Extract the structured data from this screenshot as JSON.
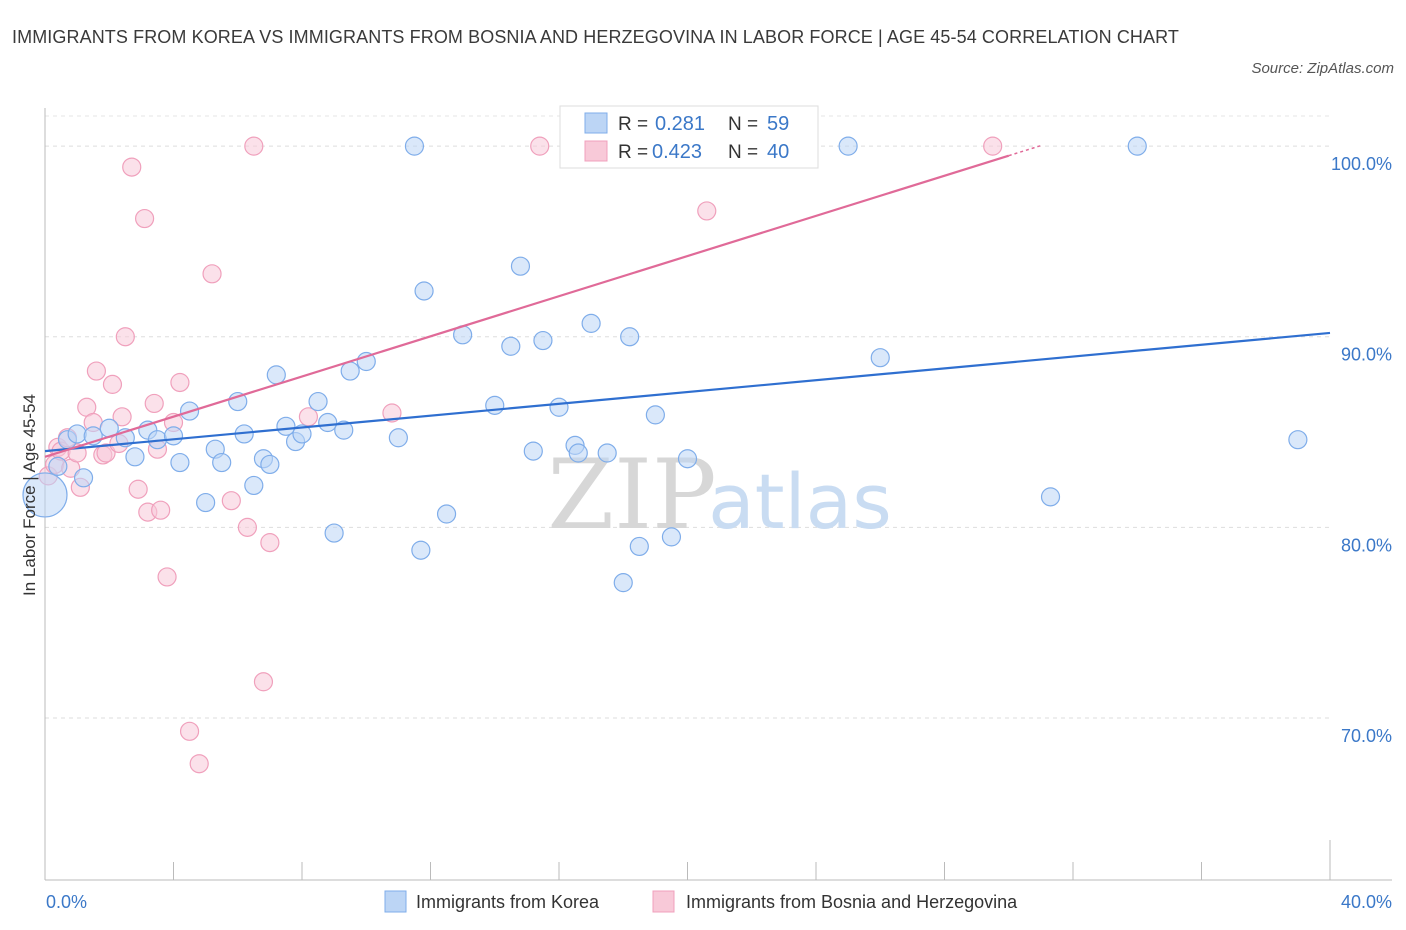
{
  "title": "IMMIGRANTS FROM KOREA VS IMMIGRANTS FROM BOSNIA AND HERZEGOVINA IN LABOR FORCE | AGE 45-54 CORRELATION CHART",
  "source": "Source: ZipAtlas.com",
  "watermark": {
    "zip": "ZIP",
    "atlas": "atlas"
  },
  "chart_data": {
    "type": "scatter",
    "ylabel": "In Labor Force | Age 45-54",
    "xlim": [
      0,
      40
    ],
    "ylim": [
      61.5,
      102
    ],
    "x_tick_labels": [
      "0.0%",
      "40.0%"
    ],
    "y_ticks": [
      70,
      80,
      90,
      100
    ],
    "y_tick_labels": [
      "70.0%",
      "80.0%",
      "90.0%",
      "100.0%"
    ],
    "grid": true,
    "legend_position": "top-center",
    "series": [
      {
        "name": "Immigrants from Korea",
        "color": "#7fadea",
        "fill": "#bcd5f5",
        "line_color": "#2f6fd0",
        "R": "0.281",
        "N": "59",
        "trend": {
          "x": [
            0,
            40
          ],
          "y": [
            84.0,
            90.2
          ]
        },
        "points": [
          [
            0.0,
            81.7
          ],
          [
            0.4,
            83.2
          ],
          [
            0.7,
            84.6
          ],
          [
            1.0,
            84.9
          ],
          [
            1.2,
            82.6
          ],
          [
            1.5,
            84.8
          ],
          [
            2.0,
            85.2
          ],
          [
            2.5,
            84.7
          ],
          [
            2.8,
            83.7
          ],
          [
            3.2,
            85.1
          ],
          [
            3.5,
            84.6
          ],
          [
            4.0,
            84.8
          ],
          [
            4.2,
            83.4
          ],
          [
            4.5,
            86.1
          ],
          [
            5.0,
            81.3
          ],
          [
            5.3,
            84.1
          ],
          [
            5.5,
            83.4
          ],
          [
            6.0,
            86.6
          ],
          [
            6.2,
            84.9
          ],
          [
            6.5,
            82.2
          ],
          [
            6.8,
            83.6
          ],
          [
            7.0,
            83.3
          ],
          [
            7.2,
            88.0
          ],
          [
            7.5,
            85.3
          ],
          [
            7.8,
            84.5
          ],
          [
            8.0,
            84.9
          ],
          [
            8.5,
            86.6
          ],
          [
            8.8,
            85.5
          ],
          [
            9.0,
            79.7
          ],
          [
            9.3,
            85.1
          ],
          [
            9.5,
            88.2
          ],
          [
            10.0,
            88.7
          ],
          [
            11.0,
            84.7
          ],
          [
            11.5,
            100.0
          ],
          [
            11.7,
            78.8
          ],
          [
            11.8,
            92.4
          ],
          [
            12.5,
            80.7
          ],
          [
            13.0,
            90.1
          ],
          [
            14.0,
            86.4
          ],
          [
            14.5,
            89.5
          ],
          [
            14.8,
            93.7
          ],
          [
            15.2,
            84.0
          ],
          [
            15.5,
            89.8
          ],
          [
            16.0,
            86.3
          ],
          [
            16.5,
            84.3
          ],
          [
            16.6,
            83.9
          ],
          [
            17.0,
            90.7
          ],
          [
            17.5,
            83.9
          ],
          [
            18.0,
            77.1
          ],
          [
            18.2,
            90.0
          ],
          [
            18.5,
            79.0
          ],
          [
            19.0,
            85.9
          ],
          [
            19.5,
            79.5
          ],
          [
            20.0,
            83.6
          ],
          [
            25.0,
            100.0
          ],
          [
            26.0,
            88.9
          ],
          [
            31.3,
            81.6
          ],
          [
            34.0,
            100.0
          ],
          [
            39.0,
            84.6
          ]
        ]
      },
      {
        "name": "Immigrants from Bosnia and Herzegovina",
        "color": "#f0a0bc",
        "fill": "#f8c9d8",
        "line_color": "#e06a98",
        "R": "0.423",
        "N": "40",
        "trend": {
          "x": [
            0,
            30
          ],
          "y": [
            83.7,
            99.5
          ]
        },
        "points": [
          [
            0.1,
            82.7
          ],
          [
            0.3,
            83.3
          ],
          [
            0.4,
            84.2
          ],
          [
            0.5,
            84.0
          ],
          [
            0.7,
            84.7
          ],
          [
            0.8,
            83.1
          ],
          [
            1.0,
            83.9
          ],
          [
            1.1,
            82.1
          ],
          [
            1.3,
            86.3
          ],
          [
            1.5,
            85.5
          ],
          [
            1.6,
            88.2
          ],
          [
            1.8,
            83.8
          ],
          [
            1.9,
            83.9
          ],
          [
            2.1,
            87.5
          ],
          [
            2.3,
            84.4
          ],
          [
            2.4,
            85.8
          ],
          [
            2.5,
            90.0
          ],
          [
            2.7,
            98.9
          ],
          [
            2.9,
            82.0
          ],
          [
            3.1,
            96.2
          ],
          [
            3.2,
            80.8
          ],
          [
            3.4,
            86.5
          ],
          [
            3.5,
            84.1
          ],
          [
            3.6,
            80.9
          ],
          [
            3.8,
            77.4
          ],
          [
            4.0,
            85.5
          ],
          [
            4.2,
            87.6
          ],
          [
            4.5,
            69.3
          ],
          [
            4.8,
            67.6
          ],
          [
            5.2,
            93.3
          ],
          [
            5.8,
            81.4
          ],
          [
            6.3,
            80.0
          ],
          [
            6.5,
            100.0
          ],
          [
            6.8,
            71.9
          ],
          [
            7.0,
            79.2
          ],
          [
            8.2,
            85.8
          ],
          [
            10.8,
            86.0
          ],
          [
            15.4,
            100.0
          ],
          [
            20.6,
            96.6
          ],
          [
            29.5,
            100.0
          ]
        ]
      }
    ]
  }
}
